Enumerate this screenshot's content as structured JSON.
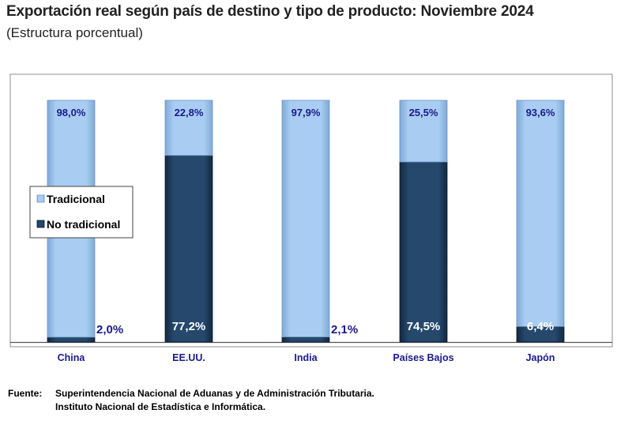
{
  "title": "Exportación real según país de destino y tipo de producto: Noviembre 2024",
  "subtitle": "(Estructura porcentual)",
  "source": {
    "label": "Fuente:",
    "line1": "Superintendencia Nacional de Aduanas y de Administración Tributaria.",
    "line2": "Instituto Nacional de Estadística e Informática."
  },
  "colors": {
    "tradicional": "#9DC3EC",
    "no_tradicional": "#1F3D5C",
    "label_dark": "#1A1A8C",
    "label_light": "#FFFFFF",
    "category_text": "#1A1A8C"
  },
  "chart_data": {
    "type": "bar",
    "stacked": true,
    "categories": [
      "China",
      "EE.UU.",
      "India",
      "Países Bajos",
      "Japón"
    ],
    "series": [
      {
        "name": "No tradicional",
        "values": [
          2.0,
          77.2,
          2.1,
          74.5,
          6.4
        ],
        "labels": [
          "2,0%",
          "77,2%",
          "2,1%",
          "74,5%",
          "6,4%"
        ]
      },
      {
        "name": "Tradicional",
        "values": [
          98.0,
          22.8,
          97.9,
          25.5,
          93.6
        ],
        "labels": [
          "98,0%",
          "22,8%",
          "97,9%",
          "25,5%",
          "93,6%"
        ]
      }
    ],
    "ylim": [
      0,
      100
    ],
    "legend": [
      "Tradicional",
      "No tradicional"
    ],
    "legend_position": "left",
    "xlabel": "",
    "ylabel": ""
  }
}
